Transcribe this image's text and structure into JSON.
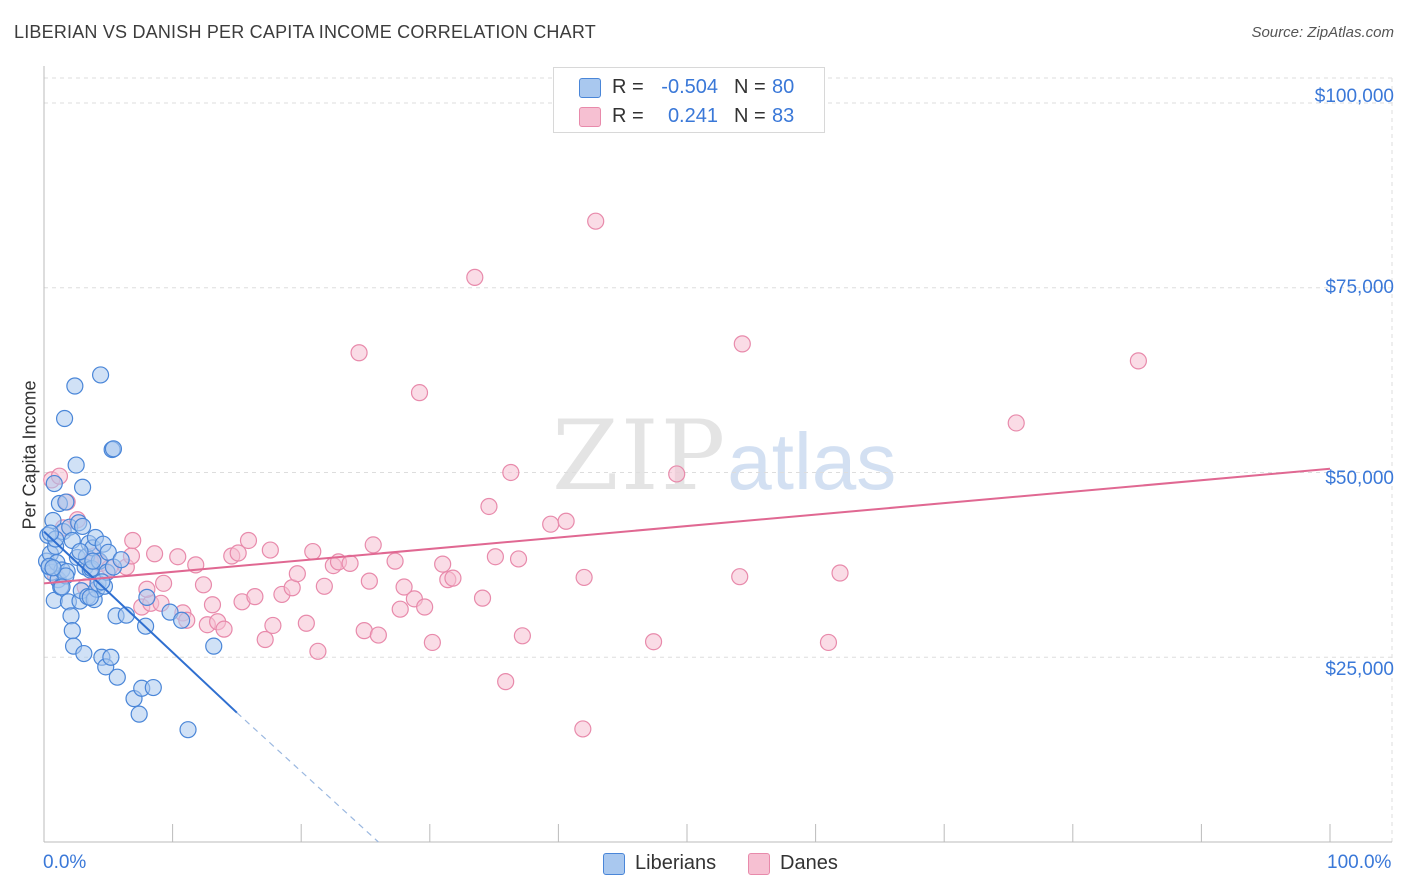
{
  "title": "LIBERIAN VS DANISH PER CAPITA INCOME CORRELATION CHART",
  "source": "Source: ZipAtlas.com",
  "watermark": {
    "zip": "ZIP",
    "atlas": "atlas"
  },
  "legend": {
    "series1": {
      "r_label": "R =",
      "r_value": "-0.504",
      "n_label": "N =",
      "n_value": "80"
    },
    "series2": {
      "r_label": "R =",
      "r_value": "0.241",
      "n_label": "N =",
      "n_value": "83"
    }
  },
  "bottom_legend": {
    "series1": "Liberians",
    "series2": "Danes"
  },
  "colors": {
    "blue_fill": "#a9c8ef",
    "blue_stroke": "#4a86d8",
    "blue_line": "#2f6fd0",
    "pink_fill": "#f6c0d2",
    "pink_stroke": "#e88aab",
    "pink_line": "#e06892",
    "tick_text": "#3a78d8",
    "grid": "#dddddd"
  },
  "chart_data": {
    "type": "scatter",
    "title": "LIBERIAN VS DANISH PER CAPITA INCOME CORRELATION CHART",
    "xlabel": "",
    "ylabel": "Per Capita Income",
    "xlim": [
      0,
      100
    ],
    "ylim": [
      0,
      105000
    ],
    "x_tick_labels": [
      "0.0%",
      "100.0%"
    ],
    "y_ticks": [
      25000,
      50000,
      75000,
      100000
    ],
    "y_tick_labels": [
      "$25,000",
      "$50,000",
      "$75,000",
      "$100,000"
    ],
    "series": [
      {
        "name": "Liberians",
        "r": -0.504,
        "n": 80,
        "trend": {
          "x0": 0,
          "y0": 42000,
          "x1": 15,
          "y1": 17500,
          "dashed_to_x": 26,
          "dashed_to_y": 0
        },
        "points": [
          [
            0.2,
            38000
          ],
          [
            0.3,
            41500
          ],
          [
            0.4,
            37200
          ],
          [
            0.5,
            39000
          ],
          [
            0.6,
            36500
          ],
          [
            0.7,
            43500
          ],
          [
            0.8,
            32700
          ],
          [
            0.8,
            48500
          ],
          [
            0.9,
            40000
          ],
          [
            1.0,
            37800
          ],
          [
            1.1,
            35500
          ],
          [
            1.2,
            45800
          ],
          [
            1.3,
            34500
          ],
          [
            1.4,
            36800
          ],
          [
            1.5,
            42000
          ],
          [
            1.6,
            57300
          ],
          [
            1.7,
            46000
          ],
          [
            1.8,
            36600
          ],
          [
            1.9,
            32500
          ],
          [
            2.0,
            42600
          ],
          [
            2.1,
            30600
          ],
          [
            2.2,
            28600
          ],
          [
            2.3,
            26500
          ],
          [
            2.4,
            61700
          ],
          [
            2.5,
            51000
          ],
          [
            2.6,
            38500
          ],
          [
            2.7,
            43200
          ],
          [
            2.8,
            32600
          ],
          [
            2.9,
            34000
          ],
          [
            3.0,
            48000
          ],
          [
            3.1,
            25500
          ],
          [
            3.2,
            37200
          ],
          [
            3.3,
            38600
          ],
          [
            3.4,
            33200
          ],
          [
            3.5,
            40400
          ],
          [
            3.6,
            36800
          ],
          [
            3.7,
            37000
          ],
          [
            3.8,
            39800
          ],
          [
            3.9,
            32800
          ],
          [
            4.0,
            41200
          ],
          [
            4.1,
            34200
          ],
          [
            4.2,
            35000
          ],
          [
            4.3,
            38000
          ],
          [
            4.4,
            63200
          ],
          [
            4.5,
            25000
          ],
          [
            4.6,
            40300
          ],
          [
            4.7,
            34600
          ],
          [
            4.8,
            23700
          ],
          [
            4.9,
            36500
          ],
          [
            5.0,
            39200
          ],
          [
            5.2,
            25000
          ],
          [
            5.3,
            53100
          ],
          [
            5.4,
            37200
          ],
          [
            5.6,
            30600
          ],
          [
            5.7,
            22300
          ],
          [
            6.0,
            38200
          ],
          [
            6.4,
            30700
          ],
          [
            7.0,
            19400
          ],
          [
            7.4,
            17300
          ],
          [
            7.6,
            20800
          ],
          [
            7.9,
            29200
          ],
          [
            8.0,
            33100
          ],
          [
            8.5,
            20900
          ],
          [
            9.8,
            31100
          ],
          [
            10.7,
            30000
          ],
          [
            11.2,
            15200
          ],
          [
            13.2,
            26500
          ],
          [
            0.4,
            37300
          ],
          [
            0.9,
            41000
          ],
          [
            1.7,
            36000
          ],
          [
            2.2,
            40800
          ],
          [
            3.0,
            42700
          ],
          [
            3.6,
            33100
          ],
          [
            4.5,
            35200
          ],
          [
            5.4,
            53200
          ],
          [
            0.5,
            41800
          ],
          [
            1.4,
            34500
          ],
          [
            0.7,
            37100
          ],
          [
            2.8,
            39300
          ],
          [
            3.8,
            38000
          ]
        ]
      },
      {
        "name": "Danes",
        "r": 0.241,
        "n": 83,
        "trend": {
          "x0": 0,
          "y0": 35000,
          "x1": 100,
          "y1": 50500
        },
        "points": [
          [
            0.6,
            49000
          ],
          [
            0.9,
            36000
          ],
          [
            1.2,
            49500
          ],
          [
            1.8,
            46000
          ],
          [
            2.6,
            43600
          ],
          [
            3.2,
            34500
          ],
          [
            3.9,
            38700
          ],
          [
            4.4,
            37700
          ],
          [
            5.1,
            37100
          ],
          [
            6.4,
            37200
          ],
          [
            6.8,
            38700
          ],
          [
            6.9,
            40800
          ],
          [
            7.6,
            31800
          ],
          [
            8.3,
            32300
          ],
          [
            8.6,
            39000
          ],
          [
            9.1,
            32300
          ],
          [
            9.3,
            35000
          ],
          [
            10.4,
            38600
          ],
          [
            10.8,
            31000
          ],
          [
            11.1,
            30000
          ],
          [
            11.8,
            37500
          ],
          [
            12.4,
            34800
          ],
          [
            12.7,
            29400
          ],
          [
            13.1,
            32100
          ],
          [
            13.5,
            29800
          ],
          [
            14.0,
            28800
          ],
          [
            14.6,
            38700
          ],
          [
            15.1,
            39100
          ],
          [
            15.4,
            32500
          ],
          [
            15.9,
            40800
          ],
          [
            16.4,
            33200
          ],
          [
            17.2,
            27400
          ],
          [
            17.6,
            39500
          ],
          [
            17.8,
            29300
          ],
          [
            18.5,
            33500
          ],
          [
            19.3,
            34400
          ],
          [
            19.7,
            36300
          ],
          [
            20.4,
            29600
          ],
          [
            20.9,
            39300
          ],
          [
            21.3,
            25800
          ],
          [
            21.8,
            34600
          ],
          [
            22.5,
            37400
          ],
          [
            22.9,
            37900
          ],
          [
            23.8,
            37700
          ],
          [
            24.5,
            66200
          ],
          [
            24.9,
            28600
          ],
          [
            25.3,
            35300
          ],
          [
            25.6,
            40200
          ],
          [
            26.0,
            28000
          ],
          [
            27.3,
            38000
          ],
          [
            27.7,
            31500
          ],
          [
            28.0,
            34500
          ],
          [
            28.8,
            32900
          ],
          [
            29.2,
            60800
          ],
          [
            29.6,
            31800
          ],
          [
            30.2,
            27000
          ],
          [
            31.0,
            37600
          ],
          [
            31.4,
            35500
          ],
          [
            31.8,
            35700
          ],
          [
            33.5,
            76400
          ],
          [
            34.1,
            33000
          ],
          [
            34.6,
            45400
          ],
          [
            35.1,
            38600
          ],
          [
            35.9,
            21700
          ],
          [
            36.3,
            50000
          ],
          [
            36.9,
            38300
          ],
          [
            37.2,
            27900
          ],
          [
            39.4,
            43000
          ],
          [
            40.6,
            43400
          ],
          [
            41.9,
            15300
          ],
          [
            42.0,
            35800
          ],
          [
            42.9,
            84000
          ],
          [
            47.4,
            27100
          ],
          [
            49.2,
            49800
          ],
          [
            54.1,
            35900
          ],
          [
            54.3,
            67400
          ],
          [
            61.0,
            27000
          ],
          [
            61.9,
            36400
          ],
          [
            75.6,
            56700
          ],
          [
            85.1,
            65100
          ],
          [
            3.6,
            38000
          ],
          [
            1.5,
            42500
          ],
          [
            8.0,
            34200
          ]
        ]
      }
    ]
  }
}
